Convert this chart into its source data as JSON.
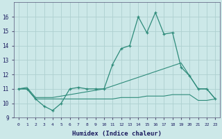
{
  "xlabel": "Humidex (Indice chaleur)",
  "x": [
    0,
    1,
    2,
    3,
    4,
    5,
    6,
    7,
    8,
    9,
    10,
    11,
    12,
    13,
    14,
    15,
    16,
    17,
    18,
    19,
    20,
    21,
    22,
    23
  ],
  "line1": [
    11.0,
    11.0,
    10.3,
    9.8,
    9.5,
    10.0,
    11.0,
    11.1,
    11.0,
    11.0,
    11.0,
    12.7,
    13.8,
    14.0,
    16.0,
    14.9,
    16.3,
    14.8,
    14.9,
    12.5,
    11.9,
    11.0,
    11.0,
    10.3
  ],
  "line2": [
    11.0,
    11.1,
    10.4,
    10.4,
    10.4,
    10.5,
    10.6,
    10.7,
    10.8,
    10.9,
    11.0,
    11.2,
    11.4,
    11.6,
    11.8,
    12.0,
    12.2,
    12.4,
    12.6,
    12.8,
    11.9,
    11.0,
    11.0,
    10.3
  ],
  "line3": [
    11.0,
    11.0,
    10.3,
    10.3,
    10.3,
    10.3,
    10.3,
    10.3,
    10.3,
    10.3,
    10.3,
    10.3,
    10.4,
    10.4,
    10.4,
    10.5,
    10.5,
    10.5,
    10.6,
    10.6,
    10.6,
    10.2,
    10.2,
    10.3
  ],
  "line_color": "#2e8b7a",
  "bg_color": "#cce8e8",
  "grid_color": "#aed0d0",
  "ylim": [
    9,
    17
  ],
  "xlim": [
    -0.5,
    23.5
  ],
  "yticks": [
    9,
    10,
    11,
    12,
    13,
    14,
    15,
    16
  ],
  "xticks": [
    0,
    1,
    2,
    3,
    4,
    5,
    6,
    7,
    8,
    9,
    10,
    11,
    12,
    13,
    14,
    15,
    16,
    17,
    18,
    19,
    20,
    21,
    22,
    23
  ]
}
